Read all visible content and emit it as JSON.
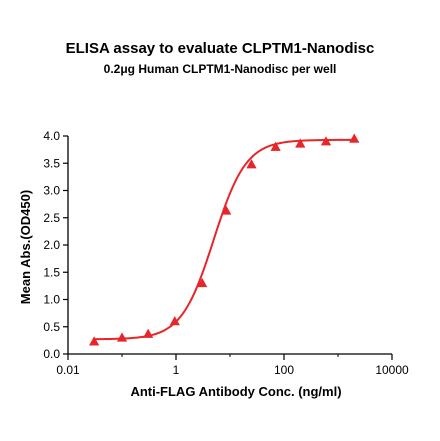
{
  "chart_data": {
    "type": "scatter",
    "title": "ELISA assay to evaluate CLPTM1-Nanodisc",
    "subtitle": "0.2μg Human CLPTM1-Nanodisc per well",
    "xlabel": "Anti-FLAG Antibody Conc. (ng/ml)",
    "ylabel": "Mean Abs.(OD450)",
    "xscale": "log",
    "xlim": [
      0.01,
      10000
    ],
    "ylim": [
      0.0,
      4.0
    ],
    "xticks": [
      0.01,
      1,
      100,
      10000
    ],
    "xtick_labels": [
      "0.01",
      "1",
      "100",
      "10000"
    ],
    "yticks": [
      0.0,
      0.5,
      1.0,
      1.5,
      2.0,
      2.5,
      3.0,
      3.5,
      4.0
    ],
    "ytick_labels": [
      "0.0",
      "0.5",
      "1.0",
      "1.5",
      "2.0",
      "2.5",
      "3.0",
      "3.5",
      "4.0"
    ],
    "series": [
      {
        "color": "#e8262a",
        "marker": "triangle",
        "x": [
          0.0305,
          0.1,
          0.305,
          0.95,
          3.05,
          8.5,
          25,
          70,
          200,
          600,
          2000
        ],
        "y": [
          0.23,
          0.3,
          0.37,
          0.6,
          1.3,
          2.63,
          3.48,
          3.8,
          3.86,
          3.9,
          3.95
        ]
      }
    ],
    "fit": {
      "type": "4PL",
      "bottom": 0.27,
      "top": 3.93,
      "ec50": 5.0,
      "hill": 1.45
    },
    "grid": false,
    "legend": "none"
  }
}
